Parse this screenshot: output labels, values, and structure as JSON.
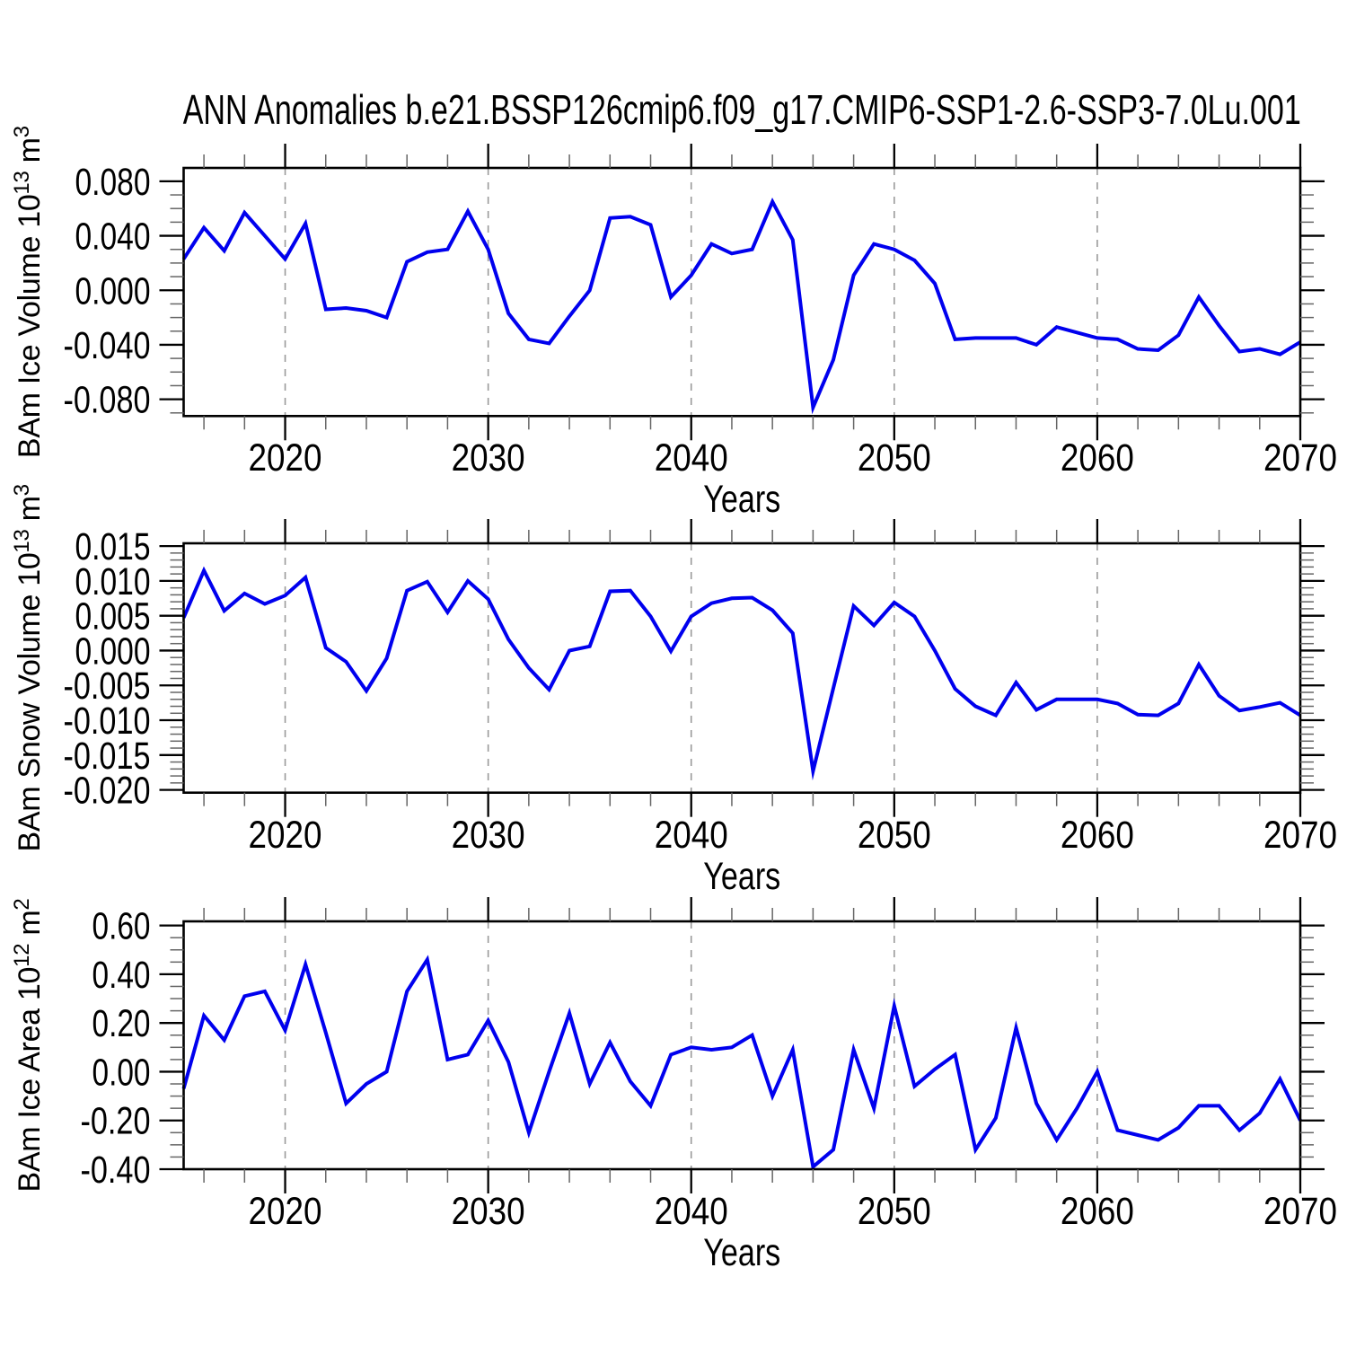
{
  "title": "ANN Anomalies b.e21.BSSP126cmip6.f09_g17.CMIP6-SSP1-2.6-SSP3-7.0Lu.001",
  "line_color": "#0000ee",
  "grid_color": "#9a9a9a",
  "axis_color": "#000000",
  "chart_data": [
    {
      "type": "line",
      "panel": 1,
      "ylabel_plain": "BAm Ice Volume 10^13 m^3",
      "ylabel_parts": [
        {
          "text": "BAm Ice Volume 10"
        },
        {
          "text": "13",
          "sup": true
        },
        {
          "text": " m"
        },
        {
          "text": "3",
          "sup": true
        }
      ],
      "xlabel": "Years",
      "x_start": 2015,
      "x_end": 2070,
      "x_step": 1,
      "values": [
        0.023,
        0.046,
        0.029,
        0.057,
        0.04,
        0.023,
        0.049,
        -0.014,
        -0.013,
        -0.015,
        -0.02,
        0.021,
        0.028,
        0.03,
        0.058,
        0.03,
        -0.017,
        -0.036,
        -0.039,
        -0.019,
        0.0,
        0.053,
        0.054,
        0.048,
        -0.005,
        0.011,
        0.034,
        0.027,
        0.03,
        0.065,
        0.037,
        -0.086,
        -0.051,
        0.011,
        0.034,
        0.03,
        0.022,
        0.005,
        -0.036,
        -0.035,
        -0.035,
        -0.035,
        -0.04,
        -0.027,
        -0.031,
        -0.035,
        -0.036,
        -0.043,
        -0.044,
        -0.033,
        -0.005,
        -0.026,
        -0.045,
        -0.043,
        -0.047,
        -0.038
      ],
      "ylim": [
        -0.0923,
        0.0898
      ],
      "xlim": [
        2015,
        2070
      ],
      "yticks": [
        {
          "v": 0.08,
          "label": "0.080"
        },
        {
          "v": 0.04,
          "label": "0.040"
        },
        {
          "v": 0.0,
          "label": "0.000"
        },
        {
          "v": -0.04,
          "label": "-0.040"
        },
        {
          "v": -0.08,
          "label": "-0.080"
        }
      ],
      "yminor_step": 0.01,
      "xticks": [
        {
          "v": 2020,
          "label": "2020"
        },
        {
          "v": 2030,
          "label": "2030"
        },
        {
          "v": 2040,
          "label": "2040"
        },
        {
          "v": 2050,
          "label": "2050"
        },
        {
          "v": 2060,
          "label": "2060"
        },
        {
          "v": 2070,
          "label": "2070"
        }
      ],
      "xminor_step": 2,
      "gridlines_x": [
        2020,
        2030,
        2040,
        2050,
        2060
      ],
      "grid_style": "vertical-dashed",
      "legend": null
    },
    {
      "type": "line",
      "panel": 2,
      "ylabel_plain": "BAm Snow Volume 10^13 m^3",
      "ylabel_parts": [
        {
          "text": "BAm Snow Volume 10"
        },
        {
          "text": "13",
          "sup": true
        },
        {
          "text": " m"
        },
        {
          "text": "3",
          "sup": true
        }
      ],
      "xlabel": "Years",
      "x_start": 2015,
      "x_end": 2070,
      "x_step": 1,
      "values": [
        0.0047,
        0.0115,
        0.0057,
        0.0082,
        0.0067,
        0.0079,
        0.0105,
        0.0004,
        -0.0016,
        -0.0058,
        -0.0011,
        0.0086,
        0.0099,
        0.0055,
        0.01,
        0.0074,
        0.0016,
        -0.0025,
        -0.0056,
        0.0,
        0.0006,
        0.0085,
        0.0086,
        0.0049,
        -0.0001,
        0.0049,
        0.0068,
        0.0075,
        0.0076,
        0.0058,
        0.0025,
        -0.0173,
        -0.0054,
        0.0064,
        0.0036,
        0.0069,
        0.0049,
        0.0,
        -0.0055,
        -0.008,
        -0.0093,
        -0.0046,
        -0.0085,
        -0.007,
        -0.007,
        -0.007,
        -0.0076,
        -0.0092,
        -0.0093,
        -0.0076,
        -0.002,
        -0.0065,
        -0.0086,
        -0.0081,
        -0.0075,
        -0.0093
      ],
      "ylim": [
        -0.0204,
        0.0154
      ],
      "xlim": [
        2015,
        2070
      ],
      "yticks": [
        {
          "v": 0.015,
          "label": "0.015"
        },
        {
          "v": 0.01,
          "label": "0.010"
        },
        {
          "v": 0.005,
          "label": "0.005"
        },
        {
          "v": 0.0,
          "label": "0.000"
        },
        {
          "v": -0.005,
          "label": "-0.005"
        },
        {
          "v": -0.01,
          "label": "-0.010"
        },
        {
          "v": -0.015,
          "label": "-0.015"
        },
        {
          "v": -0.02,
          "label": "-0.020"
        }
      ],
      "yminor_step": 0.001,
      "xticks": [
        {
          "v": 2020,
          "label": "2020"
        },
        {
          "v": 2030,
          "label": "2030"
        },
        {
          "v": 2040,
          "label": "2040"
        },
        {
          "v": 2050,
          "label": "2050"
        },
        {
          "v": 2060,
          "label": "2060"
        },
        {
          "v": 2070,
          "label": "2070"
        }
      ],
      "xminor_step": 2,
      "gridlines_x": [
        2020,
        2030,
        2040,
        2050,
        2060
      ],
      "grid_style": "vertical-dashed",
      "legend": null
    },
    {
      "type": "line",
      "panel": 3,
      "ylabel_plain": "BAm Ice Area 10^12 m^2",
      "ylabel_parts": [
        {
          "text": "BAm Ice Area 10"
        },
        {
          "text": "12",
          "sup": true
        },
        {
          "text": " m"
        },
        {
          "text": "2",
          "sup": true
        }
      ],
      "xlabel": "Years",
      "x_start": 2015,
      "x_end": 2070,
      "x_step": 1,
      "values": [
        -0.07,
        0.23,
        0.13,
        0.31,
        0.33,
        0.17,
        0.44,
        0.16,
        -0.13,
        -0.05,
        0.0,
        0.33,
        0.46,
        0.05,
        0.07,
        0.21,
        0.04,
        -0.25,
        0.0,
        0.24,
        -0.05,
        0.12,
        -0.04,
        -0.14,
        0.07,
        0.1,
        0.09,
        0.1,
        0.15,
        -0.1,
        0.09,
        -0.39,
        -0.32,
        0.09,
        -0.15,
        0.27,
        -0.06,
        0.01,
        0.07,
        -0.32,
        -0.19,
        0.18,
        -0.13,
        -0.28,
        -0.15,
        0.0,
        -0.24,
        -0.26,
        -0.28,
        -0.23,
        -0.14,
        -0.14,
        -0.24,
        -0.17,
        -0.03,
        -0.2
      ],
      "ylim": [
        -0.4,
        0.617
      ],
      "xlim": [
        2015,
        2070
      ],
      "yticks": [
        {
          "v": 0.6,
          "label": "0.60"
        },
        {
          "v": 0.4,
          "label": "0.40"
        },
        {
          "v": 0.2,
          "label": "0.20"
        },
        {
          "v": 0.0,
          "label": "0.00"
        },
        {
          "v": -0.2,
          "label": "-0.20"
        },
        {
          "v": -0.4,
          "label": "-0.40"
        }
      ],
      "yminor_step": 0.05,
      "xticks": [
        {
          "v": 2020,
          "label": "2020"
        },
        {
          "v": 2030,
          "label": "2030"
        },
        {
          "v": 2040,
          "label": "2040"
        },
        {
          "v": 2050,
          "label": "2050"
        },
        {
          "v": 2060,
          "label": "2060"
        },
        {
          "v": 2070,
          "label": "2070"
        }
      ],
      "xminor_step": 2,
      "gridlines_x": [
        2020,
        2030,
        2040,
        2050,
        2060
      ],
      "grid_style": "vertical-dashed",
      "legend": null
    }
  ]
}
